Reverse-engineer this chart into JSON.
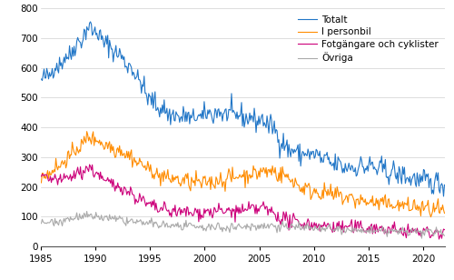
{
  "ylim": [
    0,
    800
  ],
  "yticks": [
    0,
    100,
    200,
    300,
    400,
    500,
    600,
    700,
    800
  ],
  "xticks": [
    1985,
    1990,
    1995,
    2000,
    2005,
    2010,
    2015,
    2020
  ],
  "xmin": 1985,
  "xmax": 2022.0,
  "colors": {
    "totalt": "#2176c7",
    "personbil": "#ff8c00",
    "fotgangare": "#cc007a",
    "ovriga": "#aaaaaa"
  },
  "legend": {
    "labels": [
      "Totalt",
      "I personbil",
      "Fotgängare och cyklister",
      "Övriga"
    ]
  },
  "line_width": 0.8,
  "background_color": "#ffffff",
  "grid_color": "#d0d0d0"
}
